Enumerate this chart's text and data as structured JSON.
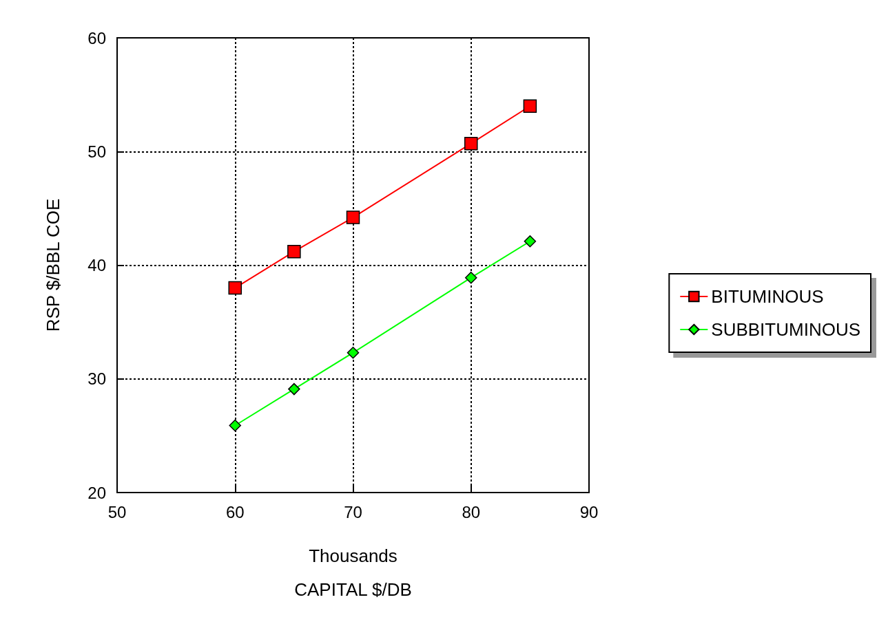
{
  "chart_data": {
    "type": "line",
    "xlabel": "CAPITAL $/DB",
    "ylabel": "RSP $/BBL COE",
    "annotations": [
      "Thousands"
    ],
    "x": [
      60,
      65,
      70,
      80,
      85
    ],
    "series": [
      {
        "name": "BITUMINOUS",
        "color": "#ff0000",
        "marker": "square",
        "values": [
          38.0,
          41.2,
          44.2,
          50.7,
          54.0
        ]
      },
      {
        "name": "SUBBITUMINOUS",
        "color": "#00ff00",
        "marker": "diamond",
        "values": [
          25.9,
          29.1,
          32.3,
          38.9,
          42.1
        ]
      }
    ],
    "xlim": [
      50,
      90
    ],
    "xticks": [
      50,
      60,
      70,
      80,
      90
    ],
    "ylim": [
      20,
      60
    ],
    "yticks": [
      20,
      30,
      40,
      50,
      60
    ],
    "grid": true,
    "legend": "right",
    "line_style": "solid"
  }
}
